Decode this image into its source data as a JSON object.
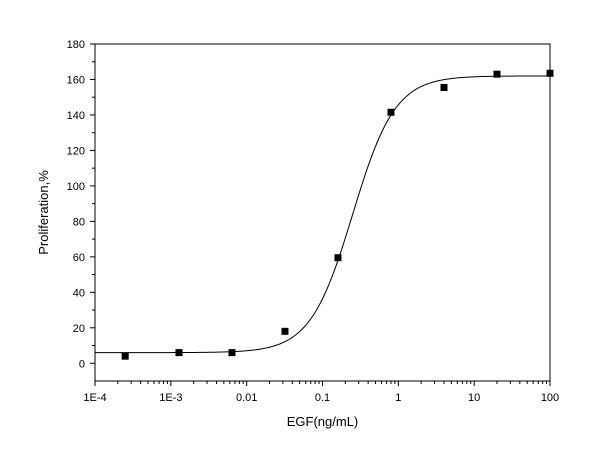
{
  "chart_data": {
    "type": "scatter",
    "xlabel": "EGF(ng/mL)",
    "ylabel": "Proliferation,%",
    "x_scale": "log",
    "xlim": [
      0.0001,
      100
    ],
    "ylim": [
      -10,
      180
    ],
    "x_ticks": [
      0.0001,
      0.001,
      0.01,
      0.1,
      1,
      10,
      100
    ],
    "x_tick_labels": [
      "1E-4",
      "1E-3",
      "0.01",
      "0.1",
      "1",
      "10",
      "100"
    ],
    "y_ticks": [
      0,
      20,
      40,
      60,
      80,
      100,
      120,
      140,
      160,
      180
    ],
    "y_tick_labels": [
      "0",
      "20",
      "40",
      "60",
      "80",
      "100",
      "120",
      "140",
      "160",
      "180"
    ],
    "grid": false,
    "legend": "none",
    "points": {
      "x": [
        0.00025,
        0.00128,
        0.0064,
        0.032,
        0.16,
        0.8,
        4,
        20,
        100
      ],
      "y": [
        4,
        6,
        6,
        18,
        59.5,
        141.5,
        155.5,
        163,
        163.5
      ]
    },
    "fit_curve": {
      "type": "sigmoid",
      "bottom": 6,
      "top": 162,
      "ec50": 0.25,
      "hill_slope": 1.55
    }
  }
}
